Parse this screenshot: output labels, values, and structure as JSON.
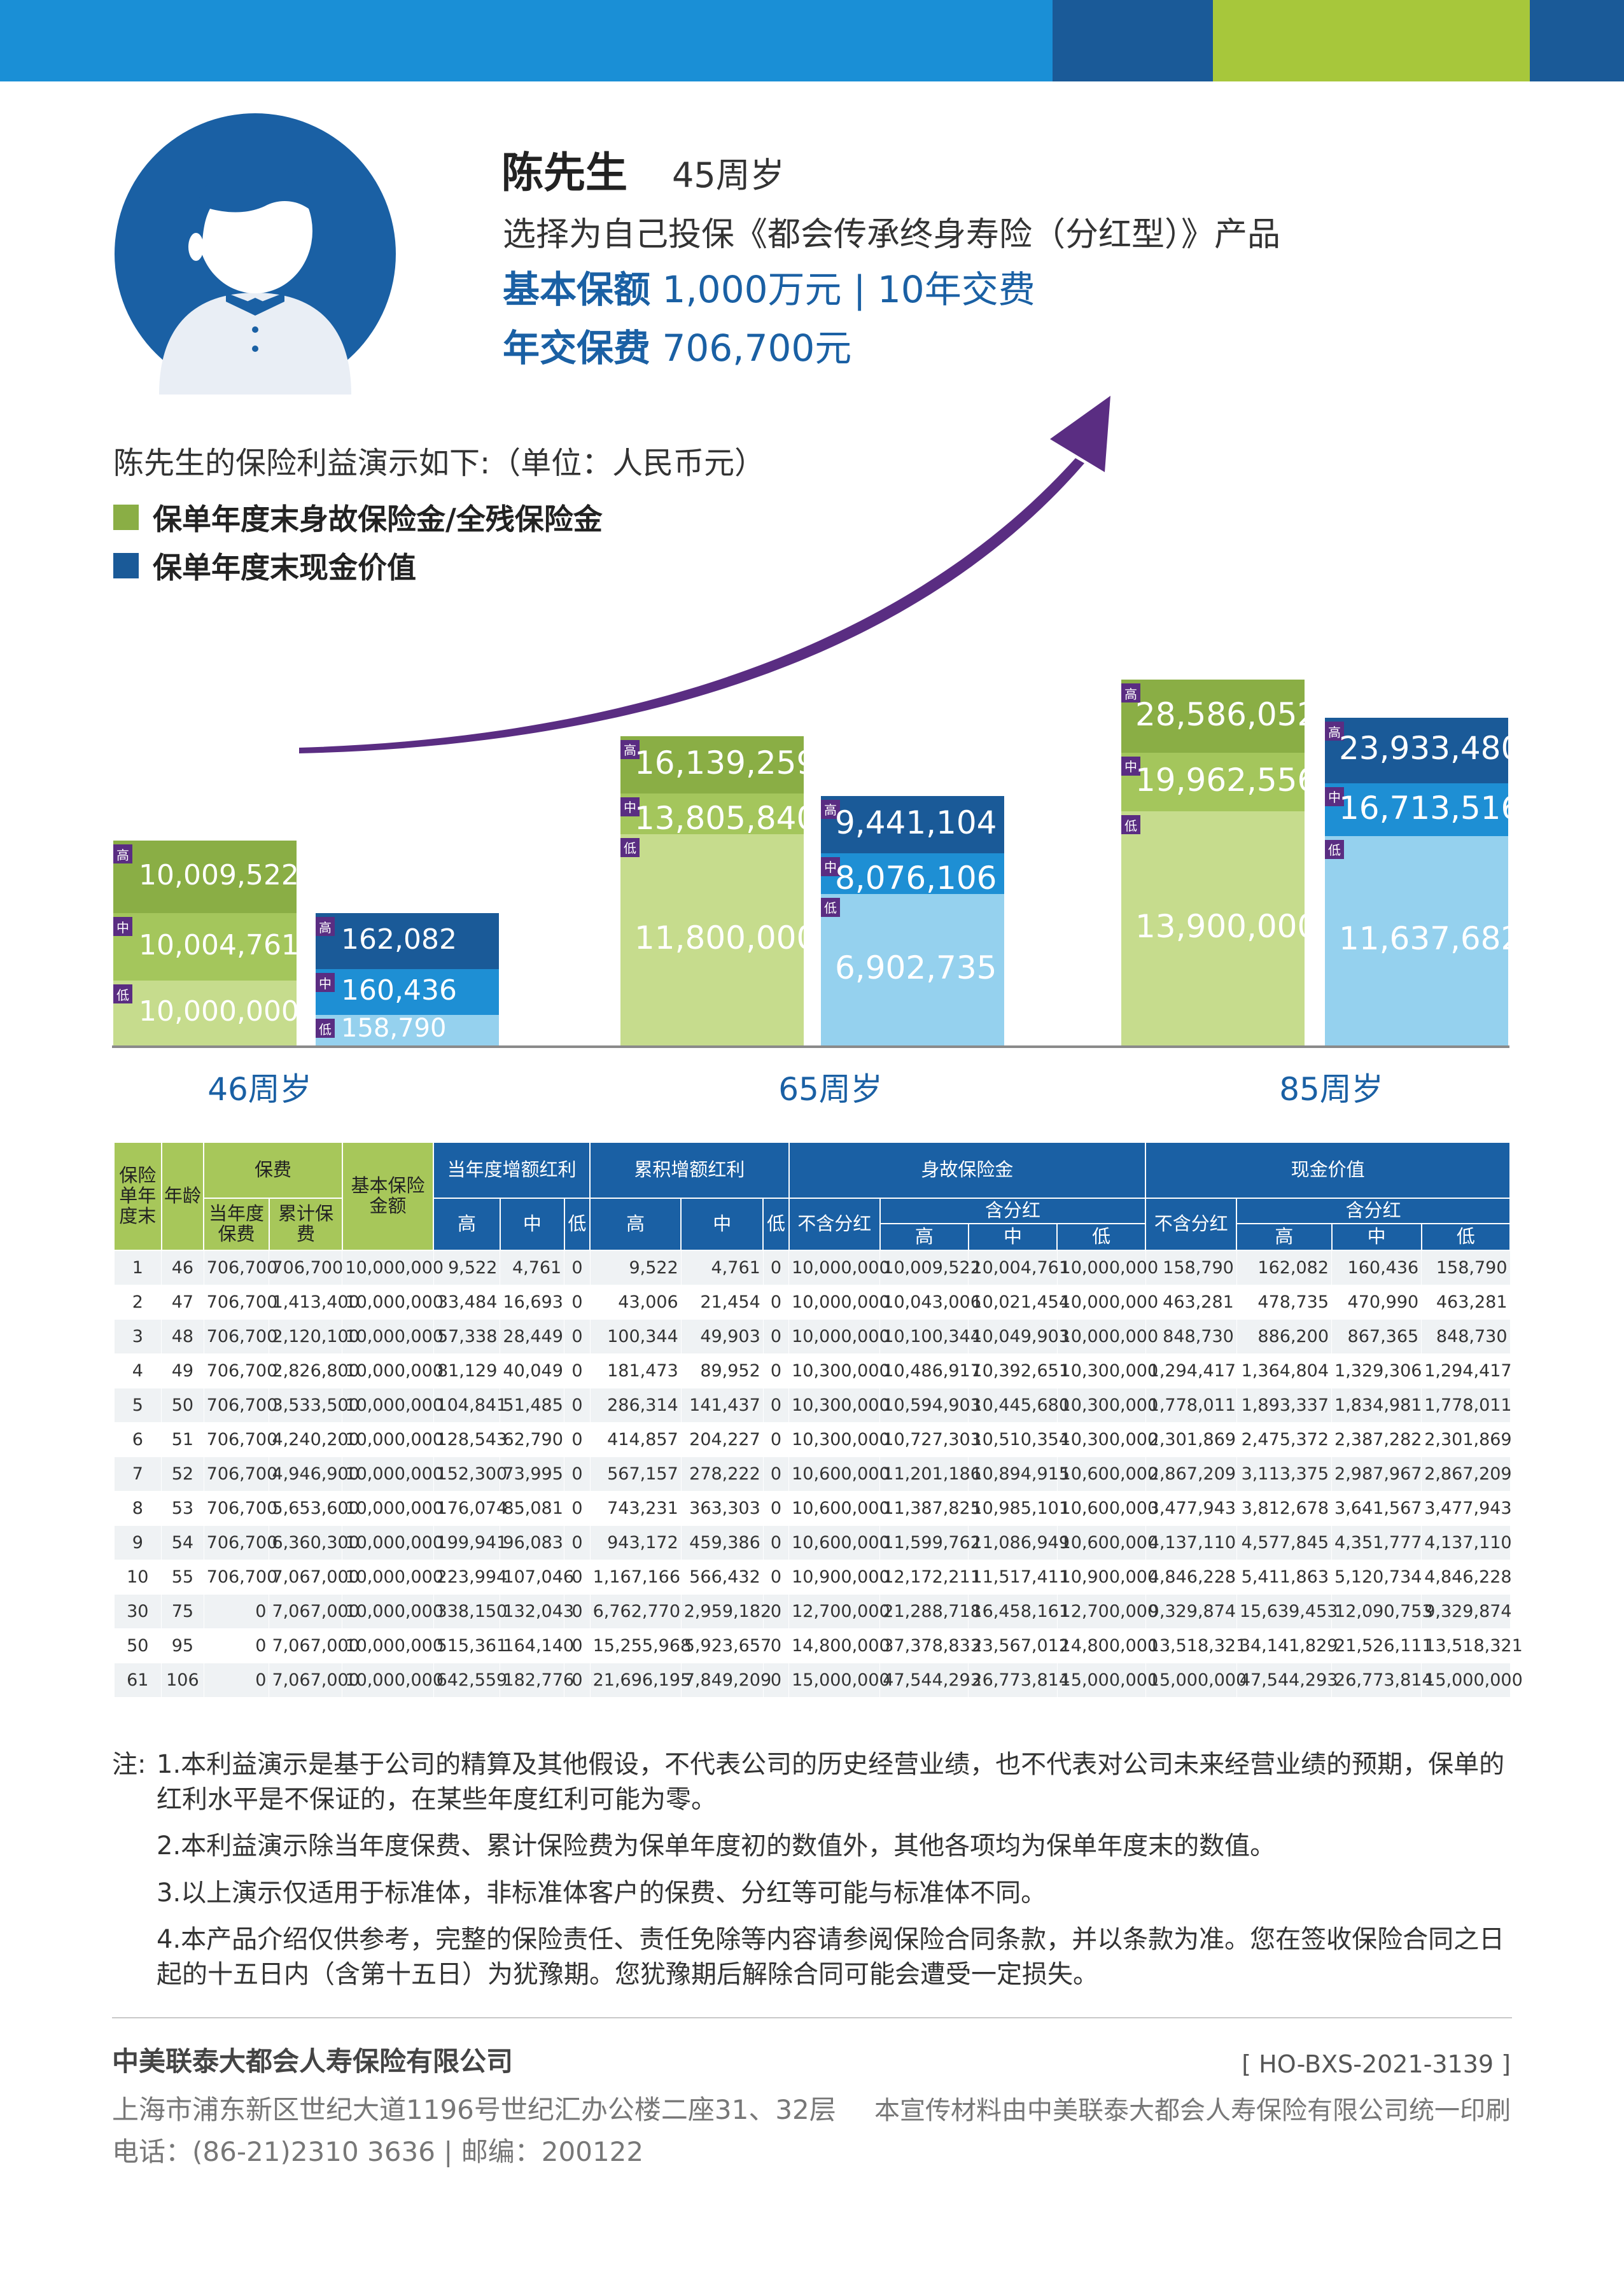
{
  "colors": {
    "blue_dark": "#1a5a98",
    "blue_mid": "#1e8fd4",
    "blue_light": "#95d1ee",
    "green_dark": "#8aae45",
    "green_mid": "#a4c65c",
    "green_light": "#c6dc8d",
    "purple": "#5a2d82",
    "lime": "#a7c73b"
  },
  "header": {
    "name": "陈先生",
    "age": "45周岁",
    "choice": "选择为自己投保《都会传承终身寿险（分红型）》产品",
    "basic_label": "基本保额",
    "basic_value": "1,000万元 | 10年交费",
    "premium_label": "年交保费",
    "premium_value": "706,700元"
  },
  "demo": {
    "title": "陈先生的保险利益演示如下:（单位：人民币元）",
    "legend_death": "保单年度末身故保险金/全残保险金",
    "legend_cash": "保单年度末现金价值"
  },
  "chart_data": {
    "type": "bar",
    "categories": [
      "46周岁",
      "65周岁",
      "85周岁"
    ],
    "scenario_tags": {
      "high": "高",
      "mid": "中",
      "low": "低"
    },
    "series": [
      {
        "name": "保单年度末身故保险金/全残保险金",
        "low": [
          10000000,
          11800000,
          13900000
        ],
        "mid": [
          10004761,
          13805840,
          19962556
        ],
        "high": [
          10009522,
          16139259,
          28586052
        ],
        "labels": {
          "low": [
            "10,000,000",
            "11,800,000",
            "13,900,000"
          ],
          "mid": [
            "10,004,761",
            "13,805,840",
            "19,962,556"
          ],
          "high": [
            "10,009,522",
            "16,139,259",
            "28,586,052"
          ]
        }
      },
      {
        "name": "保单年度末现金价值",
        "low": [
          158790,
          6902735,
          11637682
        ],
        "mid": [
          160436,
          8076106,
          16713516
        ],
        "high": [
          162082,
          9441104,
          23933480
        ],
        "labels": {
          "low": [
            "158,790",
            "6,902,735",
            "11,637,682"
          ],
          "mid": [
            "160,436",
            "8,076,106",
            "16,713,516"
          ],
          "high": [
            "162,082",
            "9,441,104",
            "23,933,480"
          ]
        }
      }
    ]
  },
  "table": {
    "h_policy_year": "保险单年度末",
    "h_age": "年龄",
    "h_premium": "保费",
    "h_basic_amount": "基本保险金额",
    "h_curr_bonus": "当年度增额红利",
    "h_cum_bonus": "累积增额红利",
    "h_death": "身故保险金",
    "h_cash": "现金价值",
    "h_year_premium": "当年度保费",
    "h_cum_premium": "累计保费",
    "h_high": "高",
    "h_mid": "中",
    "h_low": "低",
    "h_no_div": "不含分红",
    "h_with_div": "含分红",
    "rows": [
      [
        "1",
        "46",
        "706,700",
        "706,700",
        "10,000,000",
        "9,522",
        "4,761",
        "0",
        "9,522",
        "4,761",
        "0",
        "10,000,000",
        "10,009,522",
        "10,004,761",
        "10,000,000",
        "158,790",
        "162,082",
        "160,436",
        "158,790"
      ],
      [
        "2",
        "47",
        "706,700",
        "1,413,400",
        "10,000,000",
        "33,484",
        "16,693",
        "0",
        "43,006",
        "21,454",
        "0",
        "10,000,000",
        "10,043,006",
        "10,021,454",
        "10,000,000",
        "463,281",
        "478,735",
        "470,990",
        "463,281"
      ],
      [
        "3",
        "48",
        "706,700",
        "2,120,100",
        "10,000,000",
        "57,338",
        "28,449",
        "0",
        "100,344",
        "49,903",
        "0",
        "10,000,000",
        "10,100,344",
        "10,049,903",
        "10,000,000",
        "848,730",
        "886,200",
        "867,365",
        "848,730"
      ],
      [
        "4",
        "49",
        "706,700",
        "2,826,800",
        "10,000,000",
        "81,129",
        "40,049",
        "0",
        "181,473",
        "89,952",
        "0",
        "10,300,000",
        "10,486,917",
        "10,392,651",
        "10,300,000",
        "1,294,417",
        "1,364,804",
        "1,329,306",
        "1,294,417"
      ],
      [
        "5",
        "50",
        "706,700",
        "3,533,500",
        "10,000,000",
        "104,841",
        "51,485",
        "0",
        "286,314",
        "141,437",
        "0",
        "10,300,000",
        "10,594,903",
        "10,445,680",
        "10,300,000",
        "1,778,011",
        "1,893,337",
        "1,834,981",
        "1,778,011"
      ],
      [
        "6",
        "51",
        "706,700",
        "4,240,200",
        "10,000,000",
        "128,543",
        "62,790",
        "0",
        "414,857",
        "204,227",
        "0",
        "10,300,000",
        "10,727,303",
        "10,510,354",
        "10,300,000",
        "2,301,869",
        "2,475,372",
        "2,387,282",
        "2,301,869"
      ],
      [
        "7",
        "52",
        "706,700",
        "4,946,900",
        "10,000,000",
        "152,300",
        "73,995",
        "0",
        "567,157",
        "278,222",
        "0",
        "10,600,000",
        "11,201,186",
        "10,894,915",
        "10,600,000",
        "2,867,209",
        "3,113,375",
        "2,987,967",
        "2,867,209"
      ],
      [
        "8",
        "53",
        "706,700",
        "5,653,600",
        "10,000,000",
        "176,074",
        "85,081",
        "0",
        "743,231",
        "363,303",
        "0",
        "10,600,000",
        "11,387,825",
        "10,985,101",
        "10,600,000",
        "3,477,943",
        "3,812,678",
        "3,641,567",
        "3,477,943"
      ],
      [
        "9",
        "54",
        "706,700",
        "6,360,300",
        "10,000,000",
        "199,941",
        "96,083",
        "0",
        "943,172",
        "459,386",
        "0",
        "10,600,000",
        "11,599,762",
        "11,086,949",
        "10,600,000",
        "4,137,110",
        "4,577,845",
        "4,351,777",
        "4,137,110"
      ],
      [
        "10",
        "55",
        "706,700",
        "7,067,000",
        "10,000,000",
        "223,994",
        "107,046",
        "0",
        "1,167,166",
        "566,432",
        "0",
        "10,900,000",
        "12,172,211",
        "11,517,411",
        "10,900,000",
        "4,846,228",
        "5,411,863",
        "5,120,734",
        "4,846,228"
      ],
      [
        "30",
        "75",
        "0",
        "7,067,000",
        "10,000,000",
        "338,150",
        "132,043",
        "0",
        "6,762,770",
        "2,959,182",
        "0",
        "12,700,000",
        "21,288,718",
        "16,458,161",
        "12,700,000",
        "9,329,874",
        "15,639,453",
        "12,090,753",
        "9,329,874"
      ],
      [
        "50",
        "95",
        "0",
        "7,067,000",
        "10,000,000",
        "515,361",
        "164,140",
        "0",
        "15,255,968",
        "5,923,657",
        "0",
        "14,800,000",
        "37,378,833",
        "23,567,012",
        "14,800,000",
        "13,518,321",
        "34,141,829",
        "21,526,111",
        "13,518,321"
      ],
      [
        "61",
        "106",
        "0",
        "7,067,000",
        "10,000,000",
        "642,559",
        "182,776",
        "0",
        "21,696,195",
        "7,849,209",
        "0",
        "15,000,000",
        "47,544,293",
        "26,773,814",
        "15,000,000",
        "15,000,000",
        "47,544,293",
        "26,773,814",
        "15,000,000"
      ]
    ]
  },
  "notes": {
    "label": "注:",
    "items": [
      "1.本利益演示是基于公司的精算及其他假设，不代表公司的历史经营业绩，也不代表对公司未来经营业绩的预期，保单的红利水平是不保证的，在某些年度红利可能为零。",
      "2.本利益演示除当年度保费、累计保险费为保单年度初的数值外，其他各项均为保单年度末的数值。",
      "3.以上演示仅适用于标准体，非标准体客户的保费、分红等可能与标准体不同。",
      "4.本产品介绍仅供参考，完整的保险责任、责任免除等内容请参阅保险合同条款，并以条款为准。您在签收保险合同之日起的十五日内（含第十五日）为犹豫期。您犹豫期后解除合同可能会遭受一定损失。"
    ]
  },
  "footer": {
    "company": "中美联泰大都会人寿保险有限公司",
    "address": "上海市浦东新区世纪大道1196号世纪汇办公楼二座31、32层",
    "phone": "电话：(86-21)2310 3636 | 邮编：200122",
    "code": "[ HO-BXS-2021-3139 ]",
    "printed_by": "本宣传材料由中美联泰大都会人寿保险有限公司统一印刷"
  }
}
